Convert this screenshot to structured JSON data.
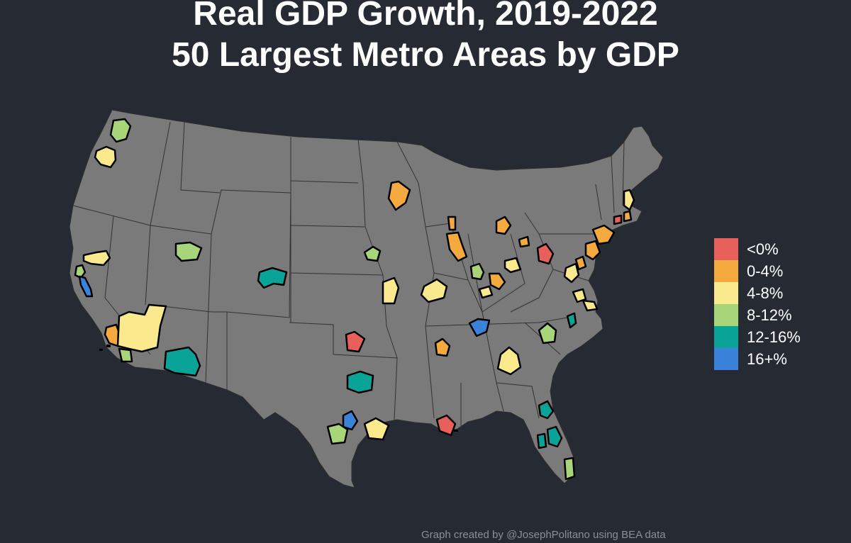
{
  "title_line1": "Real GDP Growth, 2019-2022",
  "title_line2": "50 Largest Metro Areas by GDP",
  "credit": "Graph created by @JosephPolitano using BEA data",
  "colors": {
    "background": "#252a33",
    "land": "#7a7a7a",
    "borders": "#3a3a3a"
  },
  "legend": [
    {
      "label": "<0%",
      "color": "#e8605c"
    },
    {
      "label": "0-4%",
      "color": "#f4aa3f"
    },
    {
      "label": "4-8%",
      "color": "#fbe98e"
    },
    {
      "label": "8-12%",
      "color": "#a8d47a"
    },
    {
      "label": "12-16%",
      "color": "#0aa398"
    },
    {
      "label": "16+%",
      "color": "#3b82db"
    }
  ]
}
